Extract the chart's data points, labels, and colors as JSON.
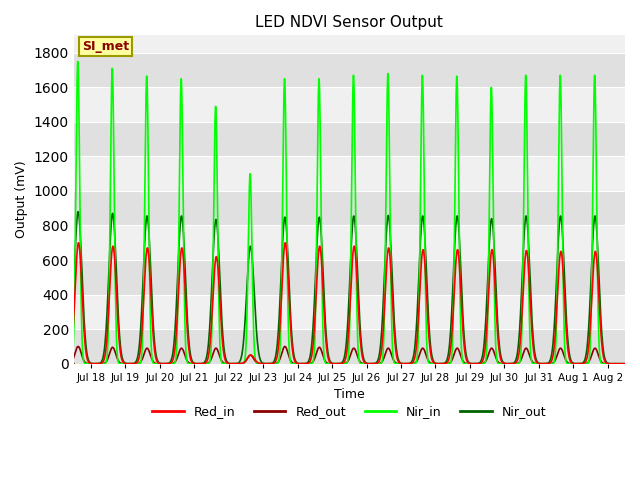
{
  "title": "LED NDVI Sensor Output",
  "xlabel": "Time",
  "ylabel": "Output (mV)",
  "ylim": [
    0,
    1900
  ],
  "yticks": [
    0,
    200,
    400,
    600,
    800,
    1000,
    1200,
    1400,
    1600,
    1800
  ],
  "background_color": "#f0f0f0",
  "plot_bg_color": "#f0f0f0",
  "annotation_text": "SI_met",
  "annotation_bg": "#ffffa0",
  "annotation_border": "#999900",
  "line_colors": {
    "Red_in": "#ff0000",
    "Red_out": "#8b0000",
    "Nir_in": "#00ff00",
    "Nir_out": "#006400"
  },
  "line_widths": {
    "Red_in": 1.2,
    "Red_out": 1.2,
    "Nir_in": 1.2,
    "Nir_out": 1.2
  },
  "days": [
    18,
    19,
    20,
    21,
    22,
    23,
    24,
    25,
    26,
    27,
    28,
    29,
    30,
    31,
    32,
    33
  ],
  "day_labels": [
    "Jul 18",
    "Jul 19",
    "Jul 20",
    "Jul 21",
    "Jul 22",
    "Jul 23",
    "Jul 24",
    "Jul 25",
    "Jul 26",
    "Jul 27",
    "Jul 28",
    "Jul 29",
    "Jul 30",
    "Jul 31",
    "Aug 1",
    "Aug 2"
  ],
  "red_in_peaks": [
    700,
    680,
    670,
    670,
    620,
    50,
    700,
    680,
    680,
    670,
    660,
    660,
    660,
    655,
    650,
    650
  ],
  "red_out_peaks": [
    100,
    95,
    90,
    90,
    90,
    50,
    100,
    95,
    90,
    90,
    90,
    90,
    90,
    90,
    90,
    90
  ],
  "nir_in_peaks": [
    1750,
    1710,
    1665,
    1650,
    1490,
    1100,
    1650,
    1650,
    1670,
    1680,
    1670,
    1665,
    1600,
    1670,
    1670,
    1670
  ],
  "nir_out_peaks": [
    880,
    870,
    855,
    855,
    835,
    680,
    848,
    848,
    855,
    858,
    855,
    855,
    840,
    855,
    855,
    855
  ],
  "band_colors": [
    "#e0e0e0",
    "#f0f0f0"
  ],
  "start_day": 17.5,
  "end_day": 33.5
}
